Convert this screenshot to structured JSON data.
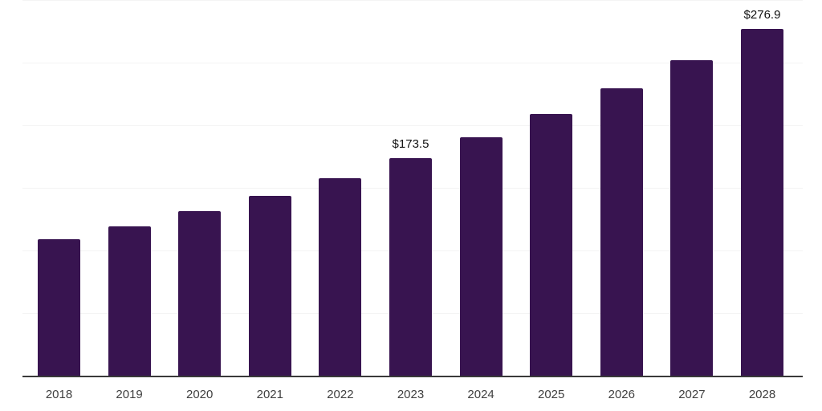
{
  "chart_data": {
    "type": "bar",
    "orientation": "vertical",
    "title": "",
    "xlabel": "",
    "ylabel": "",
    "categories": [
      "2018",
      "2019",
      "2020",
      "2021",
      "2022",
      "2023",
      "2024",
      "2025",
      "2026",
      "2027",
      "2028"
    ],
    "values": [
      108.7,
      119.4,
      131.1,
      143.9,
      158.0,
      173.5,
      190.5,
      209.2,
      229.7,
      252.2,
      276.9
    ],
    "data_labels": [
      "",
      "",
      "",
      "",
      "",
      "$173.5",
      "",
      "",
      "",
      "",
      "$276.9"
    ],
    "ylim": [
      0,
      300
    ],
    "gridline_step": 50,
    "grid": "horizontal-only",
    "legend": "none",
    "y_axis_tick_labels_visible": false,
    "style": {
      "bar_color": "#381450",
      "gridline_color": "#f4f4f4",
      "axis_line_color": "#3a3a3a",
      "value_label_color": "#111111",
      "tick_label_color": "#404040",
      "background_color": "#ffffff"
    }
  }
}
